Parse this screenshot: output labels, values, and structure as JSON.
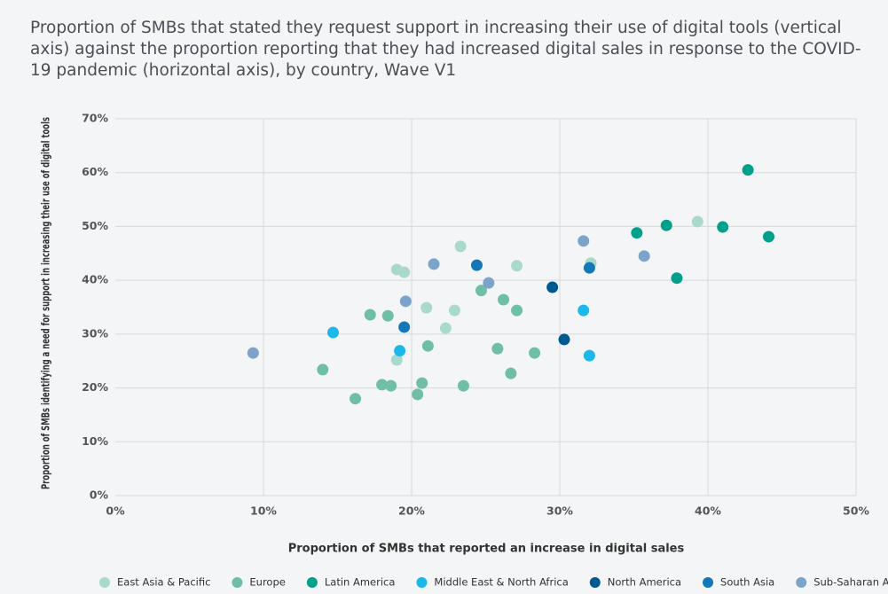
{
  "chart_data": {
    "type": "scatter",
    "title": "Proportion of SMBs that stated they request support in increasing their use of digital tools (vertical axis) against the proportion reporting that they had increased digital sales in response to the COVID-19 pandemic (horizontal axis), by country, Wave V1",
    "x_label": "Proportion of SMBs that reported an increase in digital sales",
    "y_label": "Proportion of SMBs identifying a need for support in increasing their use of digital tools",
    "xlim": [
      0,
      50
    ],
    "ylim": [
      0,
      70
    ],
    "xticks": [
      {
        "value": 0,
        "label": "0%"
      },
      {
        "value": 10,
        "label": "10%"
      },
      {
        "value": 20,
        "label": "20%"
      },
      {
        "value": 30,
        "label": "30%"
      },
      {
        "value": 40,
        "label": "40%"
      },
      {
        "value": 50,
        "label": "50%"
      }
    ],
    "yticks": [
      {
        "value": 0,
        "label": "0%"
      },
      {
        "value": 10,
        "label": "10%"
      },
      {
        "value": 20,
        "label": "20%"
      },
      {
        "value": 30,
        "label": "30%"
      },
      {
        "value": 40,
        "label": "40%"
      },
      {
        "value": 50,
        "label": "50%"
      },
      {
        "value": 60,
        "label": "60%"
      },
      {
        "value": 70,
        "label": "70%"
      }
    ],
    "grid": true,
    "legend": "bottom",
    "series": [
      {
        "name": "East Asia & Pacific",
        "color": "#a9d9cc",
        "x": [
          19.0,
          19.5,
          23.3,
          27.1,
          32.1,
          39.3,
          21.0,
          22.9,
          22.3,
          19.0
        ],
        "values": [
          42.0,
          41.5,
          46.3,
          42.7,
          43.2,
          50.9,
          34.9,
          34.4,
          31.1,
          25.2
        ]
      },
      {
        "name": "Europe",
        "color": "#6fbea5",
        "x": [
          17.2,
          18.4,
          24.7,
          26.2,
          27.1,
          21.1,
          25.8,
          28.3,
          26.7,
          23.5,
          20.7,
          20.4,
          18.0,
          18.6,
          16.2,
          14.0
        ],
        "values": [
          33.6,
          33.4,
          38.1,
          36.4,
          34.4,
          27.8,
          27.3,
          26.5,
          22.7,
          20.4,
          20.9,
          18.8,
          20.6,
          20.4,
          18.0,
          23.4
        ]
      },
      {
        "name": "Latin America",
        "color": "#00a08b",
        "x": [
          42.7,
          35.2,
          37.2,
          41.0,
          44.1,
          37.9
        ],
        "values": [
          60.5,
          48.8,
          50.2,
          49.9,
          48.1,
          40.4
        ]
      },
      {
        "name": "Middle East & North Africa",
        "color": "#1cb8ea",
        "x": [
          14.7,
          19.2,
          31.6,
          32.0
        ],
        "values": [
          30.3,
          26.9,
          34.4,
          26.0
        ]
      },
      {
        "name": "North America",
        "color": "#005a92",
        "x": [
          29.5,
          30.3
        ],
        "values": [
          38.7,
          29.0
        ]
      },
      {
        "name": "South Asia",
        "color": "#1477b7",
        "x": [
          24.4,
          32.0,
          19.5
        ],
        "values": [
          42.8,
          42.3,
          31.3
        ]
      },
      {
        "name": "Sub-Saharan Africa",
        "color": "#7ca4ca",
        "x": [
          9.3,
          21.5,
          25.2,
          19.6,
          31.6,
          35.7
        ],
        "values": [
          26.5,
          43.0,
          39.5,
          36.1,
          47.3,
          44.5
        ]
      }
    ]
  }
}
